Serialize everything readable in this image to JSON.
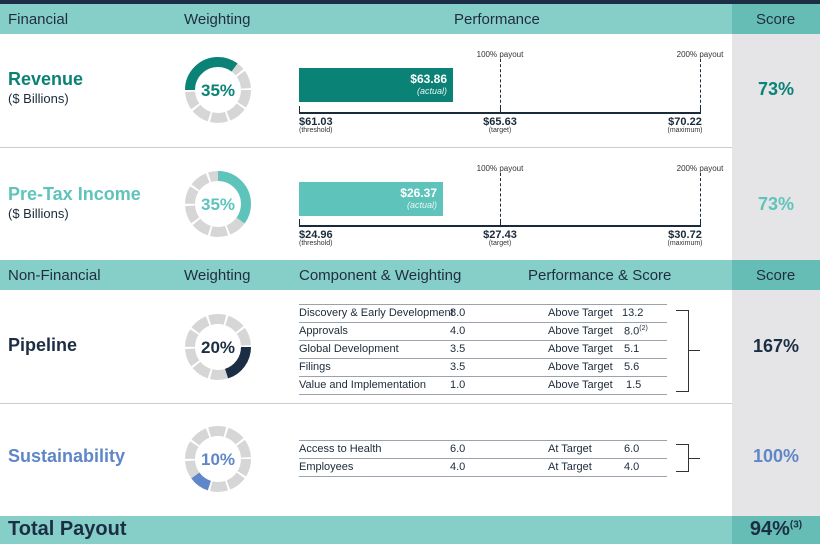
{
  "financial_header": {
    "section": "Financial",
    "weighting": "Weighting",
    "performance": "Performance",
    "score": "Score"
  },
  "revenue": {
    "title": "Revenue",
    "subtitle": "($ Billions)",
    "weight_label": "35%",
    "weight_pct": 35,
    "actual_value": "$63.86",
    "actual_label": "(actual)",
    "actual_num": 63.86,
    "payout_100": "100% payout",
    "payout_200": "200% payout",
    "threshold_value": "$61.03",
    "threshold_label": "(threshold)",
    "target_value": "$65.63",
    "target_label": "(target)",
    "max_value": "$70.22",
    "max_label": "(maximum)",
    "score": "73%"
  },
  "pretax": {
    "title": "Pre-Tax Income",
    "subtitle": "($ Billions)",
    "weight_label": "35%",
    "weight_pct": 35,
    "actual_value": "$26.37",
    "actual_label": "(actual)",
    "actual_num": 26.37,
    "payout_100": "100% payout",
    "payout_200": "200% payout",
    "threshold_value": "$24.96",
    "threshold_label": "(threshold)",
    "target_value": "$27.43",
    "target_label": "(target)",
    "max_value": "$30.72",
    "max_label": "(maximum)",
    "score": "73%"
  },
  "nonfinancial_header": {
    "section": "Non-Financial",
    "weighting": "Weighting",
    "component": "Component & Weighting",
    "performance": "Performance & Score",
    "score": "Score"
  },
  "pipeline": {
    "title": "Pipeline",
    "weight_label": "20%",
    "weight_pct": 20,
    "rows": [
      {
        "name": "Discovery & Early Development",
        "weight": "8.0",
        "perf": "Above Target",
        "score": "13.2",
        "note": ""
      },
      {
        "name": "Approvals",
        "weight": "4.0",
        "perf": "Above Target",
        "score": "8.0",
        "note": "(2)"
      },
      {
        "name": "Global Development",
        "weight": "3.5",
        "perf": "Above Target",
        "score": "5.1",
        "note": ""
      },
      {
        "name": "Filings",
        "weight": "3.5",
        "perf": "Above Target",
        "score": "5.6",
        "note": ""
      },
      {
        "name": "Value and Implementation",
        "weight": "1.0",
        "perf": "Above Target",
        "score": "1.5",
        "note": ""
      }
    ],
    "score": "167%"
  },
  "sustainability": {
    "title": "Sustainability",
    "weight_label": "10%",
    "weight_pct": 10,
    "rows": [
      {
        "name": "Access to Health",
        "weight": "6.0",
        "perf": "At Target",
        "score": "6.0"
      },
      {
        "name": "Employees",
        "weight": "4.0",
        "perf": "At Target",
        "score": "4.0"
      }
    ],
    "score": "100%"
  },
  "total": {
    "label": "Total Payout",
    "score": "94%",
    "note": "(3)"
  },
  "colors": {
    "dark_teal": "#0b8276",
    "light_teal": "#5ec4bb",
    "navy": "#1c2e44",
    "steel_blue": "#5f86c8",
    "ring_gray": "#d6d6d6"
  }
}
